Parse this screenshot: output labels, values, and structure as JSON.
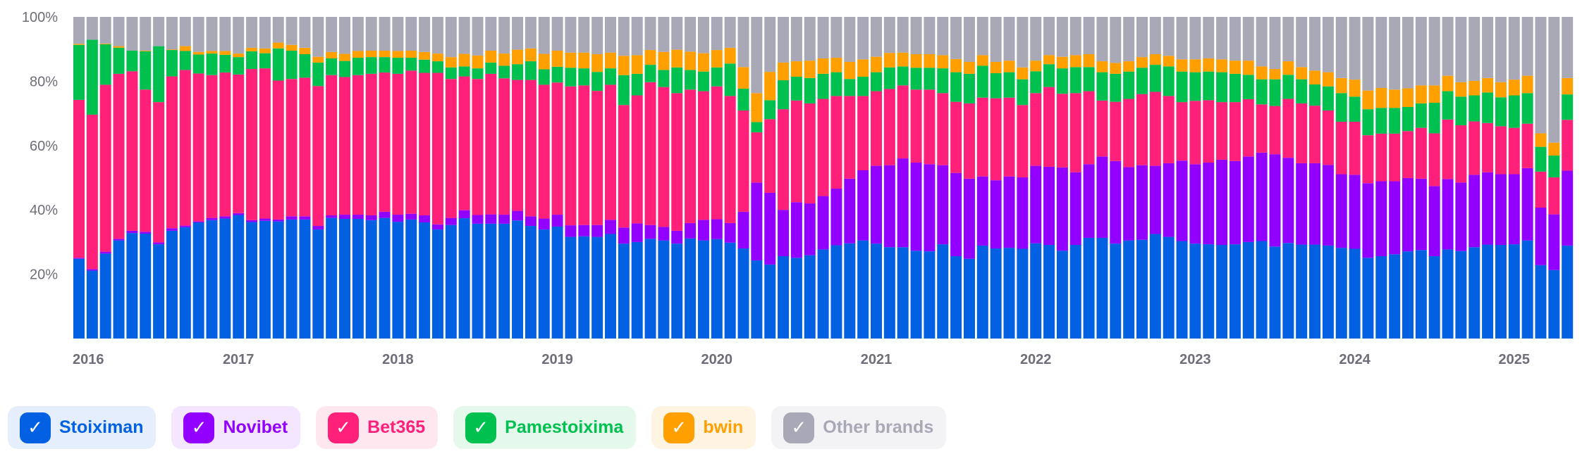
{
  "chart_data": {
    "type": "bar",
    "stacked": true,
    "title": "",
    "xlabel": "",
    "ylabel": "",
    "ylim": [
      0,
      100
    ],
    "y_ticks": [
      "20%",
      "40%",
      "60%",
      "80%",
      "100%"
    ],
    "y_tick_values": [
      20,
      40,
      60,
      80,
      100
    ],
    "x_tick_labels": [
      "2016",
      "2017",
      "2018",
      "2019",
      "2020",
      "2021",
      "2022",
      "2023",
      "2024",
      "2025"
    ],
    "period": "monthly, Jan 2016 - May 2025",
    "legend_position": "bottom",
    "series": [
      {
        "name": "Stoiximan",
        "color": "#0260e2",
        "values": [
          24.8,
          21.1,
          26.4,
          30.5,
          32.8,
          32.6,
          29.3,
          33.5,
          34.6,
          36.1,
          36.8,
          37.3,
          38.4,
          36.2,
          36.6,
          36.4,
          37.0,
          37.0,
          33.9,
          37.5,
          37.2,
          37.2,
          36.8,
          37.5,
          36.3,
          37.0,
          36.1,
          33.9,
          35.3,
          37.4,
          35.7,
          35.7,
          35.7,
          36.7,
          35.0,
          33.9,
          34.8,
          31.6,
          31.8,
          31.6,
          32.5,
          29.5,
          30.0,
          31.0,
          30.5,
          29.5,
          31.1,
          30.5,
          30.9,
          29.8,
          28.0,
          24.3,
          23.0,
          25.6,
          25.1,
          25.9,
          27.7,
          29.0,
          29.6,
          30.5,
          29.5,
          28.4,
          28.4,
          27.3,
          27.1,
          29.3,
          25.6,
          24.8,
          28.9,
          28.0,
          28.2,
          27.9,
          29.6,
          29.1,
          27.3,
          29.1,
          31.3,
          31.3,
          29.5,
          30.5,
          30.7,
          32.5,
          31.6,
          30.3,
          29.5,
          29.3,
          29.1,
          29.3,
          30.0,
          30.3,
          28.6,
          29.7,
          29.2,
          29.2,
          28.9,
          28.2,
          27.9,
          25.1,
          25.6,
          26.2,
          27.1,
          27.5,
          25.6,
          27.7,
          27.2,
          28.4,
          29.2,
          29.1,
          29.3,
          30.5,
          22.8,
          21.3,
          28.9
        ]
      },
      {
        "name": "Novibet",
        "color": "#9200ff",
        "values": [
          0.3,
          0.5,
          0.6,
          0.5,
          0.7,
          0.6,
          0.6,
          0.8,
          0.5,
          0.3,
          0.7,
          0.7,
          0.6,
          0.6,
          0.7,
          0.6,
          1.0,
          1.0,
          1.1,
          0.8,
          1.3,
          1.3,
          1.5,
          1.9,
          2.2,
          1.8,
          2.2,
          1.6,
          2.2,
          2.5,
          2.7,
          2.9,
          2.8,
          3.0,
          3.0,
          3.4,
          3.7,
          3.6,
          3.5,
          3.7,
          4.4,
          5.0,
          5.8,
          4.3,
          4.2,
          4.0,
          4.8,
          6.4,
          6.2,
          6.1,
          11.4,
          24.2,
          22.3,
          14.4,
          17.3,
          16.1,
          16.6,
          17.6,
          20.1,
          21.8,
          24.2,
          25.5,
          27.6,
          27.4,
          27.1,
          24.6,
          25.9,
          24.9,
          21.5,
          21.2,
          22.2,
          22.2,
          24.1,
          24.3,
          25.9,
          22.6,
          22.9,
          25.3,
          25.7,
          22.8,
          23.2,
          21.2,
          22.9,
          25.0,
          24.7,
          25.4,
          26.5,
          25.9,
          26.6,
          27.5,
          28.7,
          26.5,
          25.3,
          25.3,
          25.1,
          22.9,
          23.0,
          23.2,
          23.3,
          22.7,
          22.8,
          22.2,
          21.8,
          21.9,
          21.3,
          22.5,
          22.5,
          22.0,
          21.8,
          22.5,
          17.9,
          17.3,
          23.3
        ]
      },
      {
        "name": "Bet365",
        "color": "#ff2079",
        "values": [
          49.1,
          48.0,
          51.9,
          51.3,
          49.6,
          44.2,
          43.6,
          47.2,
          48.4,
          46.0,
          44.4,
          44.7,
          43.1,
          47.0,
          46.7,
          43.2,
          42.7,
          43.1,
          43.5,
          43.6,
          42.8,
          43.4,
          44.0,
          43.3,
          43.8,
          44.5,
          44.3,
          47.1,
          43.2,
          41.6,
          42.3,
          43.7,
          42.4,
          40.7,
          42.4,
          41.6,
          41.1,
          43.2,
          43.4,
          41.7,
          42.0,
          38.1,
          39.8,
          44.4,
          43.5,
          42.8,
          41.5,
          40.0,
          41.3,
          39.5,
          31.5,
          15.6,
          22.9,
          31.3,
          31.6,
          31.1,
          30.2,
          28.8,
          25.7,
          23.1,
          23.2,
          23.7,
          22.7,
          22.7,
          23.2,
          22.4,
          22.1,
          23.4,
          24.5,
          25.5,
          24.5,
          22.5,
          22.6,
          24.8,
          22.9,
          24.6,
          22.7,
          17.4,
          18.4,
          21.2,
          22.1,
          23.0,
          20.9,
          18.2,
          19.7,
          19.4,
          17.9,
          18.3,
          17.8,
          15.0,
          15.0,
          18.3,
          18.6,
          17.9,
          16.9,
          16.3,
          16.5,
          14.9,
          14.8,
          14.8,
          14.6,
          15.8,
          16.4,
          18.5,
          17.8,
          16.6,
          15.3,
          14.9,
          14.4,
          13.8,
          11.2,
          11.5,
          15.8
        ]
      },
      {
        "name": "Pamestoixima",
        "color": "#00c050",
        "values": [
          17.1,
          23.3,
          12.6,
          8.1,
          6.4,
          11.9,
          17.4,
          8.2,
          5.9,
          5.9,
          6.7,
          5.5,
          5.4,
          5.5,
          4.7,
          10.0,
          8.8,
          7.3,
          7.3,
          5.2,
          5.0,
          5.4,
          5.2,
          4.8,
          5.0,
          4.0,
          4.1,
          3.6,
          3.6,
          3.1,
          3.3,
          3.5,
          3.9,
          4.9,
          5.8,
          4.8,
          4.9,
          5.8,
          5.3,
          5.9,
          5.1,
          9.3,
          6.7,
          5.4,
          5.3,
          8.0,
          6.1,
          6.1,
          5.9,
          10.1,
          6.8,
          3.2,
          5.9,
          9.0,
          7.4,
          7.9,
          7.8,
          7.4,
          5.3,
          6.0,
          5.9,
          6.7,
          5.9,
          6.8,
          6.8,
          7.7,
          9.2,
          9.2,
          9.9,
          7.8,
          7.9,
          8.0,
          6.8,
          7.1,
          7.9,
          8.1,
          7.5,
          8.8,
          8.7,
          8.5,
          8.2,
          8.4,
          9.2,
          9.5,
          8.9,
          8.9,
          9.3,
          8.8,
          7.6,
          7.8,
          8.3,
          7.5,
          7.5,
          6.6,
          7.5,
          8.9,
          7.8,
          8.1,
          8.0,
          8.0,
          7.5,
          7.6,
          9.5,
          8.8,
          8.9,
          8.1,
          9.5,
          9.0,
          10.1,
          9.5,
          7.7,
          6.8,
          7.9
        ]
      },
      {
        "name": "bwin",
        "color": "#ff9f00",
        "values": [
          0.3,
          0.0,
          0.2,
          0.5,
          0.0,
          0.2,
          0.0,
          0.2,
          1.5,
          0.8,
          0.8,
          1.2,
          1.1,
          1.1,
          1.5,
          1.8,
          1.8,
          2.0,
          1.8,
          2.0,
          2.2,
          2.1,
          2.0,
          2.0,
          2.1,
          2.2,
          2.4,
          2.4,
          3.2,
          3.9,
          4.0,
          3.7,
          3.8,
          4.5,
          4.0,
          4.8,
          5.0,
          4.7,
          4.9,
          5.5,
          4.9,
          6.0,
          5.8,
          4.6,
          5.6,
          5.5,
          5.7,
          5.7,
          5.4,
          4.9,
          6.7,
          9.0,
          8.8,
          5.5,
          4.8,
          5.4,
          4.8,
          4.5,
          5.3,
          5.4,
          4.8,
          4.5,
          4.3,
          4.2,
          4.2,
          4.1,
          4.1,
          3.7,
          3.3,
          3.5,
          3.6,
          3.7,
          3.3,
          2.8,
          3.6,
          3.7,
          4.0,
          3.4,
          3.4,
          3.2,
          3.3,
          3.3,
          3.3,
          3.8,
          4.0,
          4.1,
          4.0,
          4.1,
          4.4,
          4.0,
          3.2,
          4.2,
          3.8,
          4.3,
          4.4,
          4.7,
          5.3,
          5.8,
          6.2,
          5.7,
          5.8,
          5.6,
          5.4,
          4.8,
          4.5,
          4.5,
          4.5,
          4.7,
          4.9,
          5.4,
          4.2,
          4.0,
          5.1
        ]
      },
      {
        "name": "Other brands",
        "color": "#a9a8b6",
        "values": [
          8.4,
          7.1,
          8.3,
          9.1,
          10.5,
          10.5,
          9.1,
          10.1,
          9.1,
          10.9,
          10.6,
          10.6,
          11.4,
          9.6,
          9.8,
          8.0,
          8.7,
          9.6,
          12.4,
          10.9,
          11.5,
          10.6,
          10.5,
          10.5,
          10.6,
          10.5,
          10.9,
          11.4,
          12.5,
          11.5,
          12.0,
          10.5,
          11.4,
          10.2,
          9.8,
          11.5,
          10.5,
          11.1,
          11.1,
          11.6,
          11.1,
          12.1,
          11.9,
          10.3,
          10.9,
          10.2,
          10.8,
          11.3,
          10.3,
          9.6,
          15.6,
          23.7,
          17.1,
          14.2,
          13.8,
          13.6,
          12.9,
          12.7,
          14.0,
          13.2,
          12.4,
          11.2,
          11.1,
          11.6,
          11.6,
          11.9,
          13.1,
          14.0,
          11.9,
          14.0,
          13.6,
          15.7,
          13.6,
          11.9,
          12.4,
          11.9,
          11.6,
          13.8,
          14.3,
          13.8,
          12.5,
          11.6,
          12.1,
          13.2,
          13.2,
          12.9,
          13.2,
          13.6,
          13.6,
          15.4,
          16.2,
          13.8,
          15.6,
          16.7,
          17.2,
          19.0,
          19.5,
          22.9,
          22.1,
          22.6,
          22.2,
          21.3,
          21.3,
          18.3,
          20.3,
          19.9,
          19.0,
          20.3,
          19.5,
          18.3,
          36.2,
          39.1,
          19.0
        ]
      }
    ]
  },
  "legend": [
    {
      "label": "Stoiximan",
      "color": "#0260e2",
      "bg": "#e5eefc",
      "checked": "✓"
    },
    {
      "label": "Novibet",
      "color": "#9200ff",
      "bg": "#f3e6fe",
      "checked": "✓"
    },
    {
      "label": "Bet365",
      "color": "#ff2079",
      "bg": "#ffe7f0",
      "checked": "✓"
    },
    {
      "label": "Pamestoixima",
      "color": "#00c050",
      "bg": "#e4f8eb",
      "checked": "✓"
    },
    {
      "label": "bwin",
      "color": "#ff9f00",
      "bg": "#fff4e2",
      "checked": "✓"
    },
    {
      "label": "Other brands",
      "color": "#a9a8b6",
      "bg": "#f3f3f5",
      "checked": "✓"
    }
  ]
}
